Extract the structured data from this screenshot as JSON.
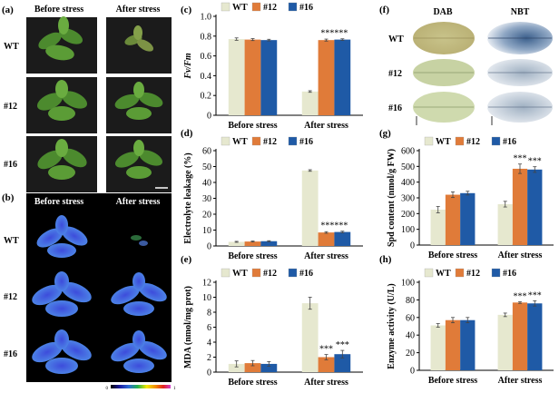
{
  "figure": {
    "panel_a": {
      "label": "(a)",
      "col_headers": [
        "Before stress",
        "After stress"
      ],
      "row_labels": [
        "WT",
        "#12",
        "#16"
      ]
    },
    "panel_b": {
      "label": "(b)",
      "col_headers": [
        "Before stress",
        "After stress"
      ],
      "row_labels": [
        "WT",
        "#12",
        "#16"
      ],
      "colorbar": {
        "min": "0",
        "max": "1"
      }
    },
    "panel_f": {
      "label": "(f)",
      "col_headers": [
        "DAB",
        "NBT"
      ],
      "row_labels": [
        "WT",
        "#12",
        "#16"
      ]
    },
    "colors": {
      "WT": "#e6e8cf",
      "#12": "#e07b39",
      "#16": "#1f5aa6"
    }
  },
  "chart_data": [
    {
      "id": "c",
      "label": "(c)",
      "type": "bar",
      "title": "",
      "xlabel": "",
      "ylabel": "Fv/Fm",
      "ylim": [
        0,
        1.0
      ],
      "yticks": [
        "0",
        "0.2",
        "0.4",
        "0.6",
        "0.8",
        "1.0"
      ],
      "categories": [
        "Before stress",
        "After stress"
      ],
      "series": [
        {
          "name": "WT",
          "values": [
            0.77,
            0.24
          ],
          "errors": [
            0.012,
            0.008
          ]
        },
        {
          "name": "#12",
          "values": [
            0.765,
            0.76
          ],
          "errors": [
            0.01,
            0.01
          ]
        },
        {
          "name": "#16",
          "values": [
            0.76,
            0.765
          ],
          "errors": [
            0.008,
            0.008
          ]
        }
      ],
      "annotations": [
        "******"
      ]
    },
    {
      "id": "d",
      "label": "(d)",
      "type": "bar",
      "title": "",
      "xlabel": "",
      "ylabel": "Electrolyte leakage (%)",
      "ylim": [
        0,
        60
      ],
      "yticks": [
        "0",
        "10",
        "20",
        "30",
        "40",
        "50",
        "60"
      ],
      "categories": [
        "Before stress",
        "After stress"
      ],
      "series": [
        {
          "name": "WT",
          "values": [
            2.6,
            47.5
          ],
          "errors": [
            0.3,
            0.5
          ]
        },
        {
          "name": "#12",
          "values": [
            2.8,
            8.5
          ],
          "errors": [
            0.3,
            0.5
          ]
        },
        {
          "name": "#16",
          "values": [
            3.0,
            8.8
          ],
          "errors": [
            0.3,
            0.5
          ]
        }
      ],
      "annotations": [
        "******"
      ]
    },
    {
      "id": "e",
      "label": "(e)",
      "type": "bar",
      "title": "",
      "xlabel": "",
      "ylabel": "MDA (nmol/mg prot)",
      "ylim": [
        0,
        12
      ],
      "yticks": [
        "0",
        "2",
        "4",
        "6",
        "8",
        "10",
        "12"
      ],
      "categories": [
        "Before stress",
        "After stress"
      ],
      "series": [
        {
          "name": "WT",
          "values": [
            1.1,
            9.2
          ],
          "errors": [
            0.4,
            0.8
          ]
        },
        {
          "name": "#12",
          "values": [
            1.2,
            2.0
          ],
          "errors": [
            0.35,
            0.35
          ]
        },
        {
          "name": "#16",
          "values": [
            1.1,
            2.4
          ],
          "errors": [
            0.3,
            0.5
          ]
        }
      ],
      "annotations": [
        "***",
        "***"
      ]
    },
    {
      "id": "g",
      "label": "(g)",
      "type": "bar",
      "title": "",
      "xlabel": "",
      "ylabel": "Spd content (nmol/g FW)",
      "ylim": [
        0,
        600
      ],
      "yticks": [
        "0",
        "100",
        "200",
        "300",
        "400",
        "500",
        "600"
      ],
      "categories": [
        "Before stress",
        "After stress"
      ],
      "series": [
        {
          "name": "WT",
          "values": [
            225,
            260
          ],
          "errors": [
            20,
            18
          ]
        },
        {
          "name": "#12",
          "values": [
            320,
            485
          ],
          "errors": [
            18,
            30
          ]
        },
        {
          "name": "#16",
          "values": [
            330,
            480
          ],
          "errors": [
            12,
            18
          ]
        }
      ],
      "annotations": [
        "***",
        "***"
      ]
    },
    {
      "id": "h",
      "label": "(h)",
      "type": "bar",
      "title": "",
      "xlabel": "",
      "ylabel": "Enzyme activity (U/L)",
      "ylim": [
        0,
        100
      ],
      "yticks": [
        "0",
        "20",
        "40",
        "60",
        "80",
        "100"
      ],
      "categories": [
        "Before stress",
        "After stress"
      ],
      "series": [
        {
          "name": "WT",
          "values": [
            51,
            63
          ],
          "errors": [
            2,
            2
          ]
        },
        {
          "name": "#12",
          "values": [
            57,
            77
          ],
          "errors": [
            3,
            1
          ]
        },
        {
          "name": "#16",
          "values": [
            57,
            76
          ],
          "errors": [
            3,
            3
          ]
        }
      ],
      "annotations": [
        "***",
        "***"
      ]
    }
  ]
}
